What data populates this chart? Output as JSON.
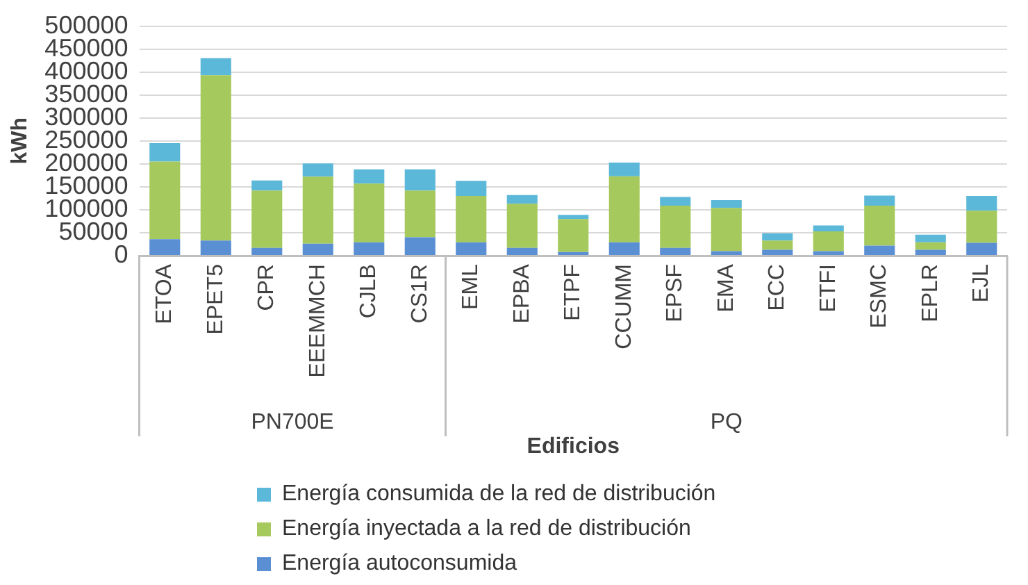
{
  "chart_data": {
    "type": "bar",
    "stacked": true,
    "xlabel": "Edificios",
    "ylabel": "kWh",
    "categories": [
      "ETOA",
      "EPET5",
      "CPR",
      "EEEMMCH",
      "CJLB",
      "CS1R",
      "EML",
      "EPBA",
      "ETPF",
      "CCUMM",
      "EPSF",
      "EMA",
      "ECC",
      "ETFI",
      "ESMC",
      "EPLR",
      "EJL"
    ],
    "series": [
      {
        "name": "Energía autoconsumida",
        "color": "#5b8fd4",
        "values": [
          36000,
          33000,
          17000,
          26000,
          29000,
          40000,
          29000,
          17000,
          8000,
          29000,
          17000,
          10000,
          13000,
          10000,
          22000,
          13000,
          28000
        ]
      },
      {
        "name": "Energía inyectada a la red de distribución",
        "color": "#a5c95c",
        "values": [
          169000,
          360000,
          125000,
          146000,
          128000,
          102000,
          101000,
          96000,
          72000,
          144000,
          92000,
          94000,
          20000,
          43000,
          87000,
          16000,
          70000
        ]
      },
      {
        "name": "Energía consumida de la red de distribución",
        "color": "#5cb8d9",
        "values": [
          40000,
          37000,
          22000,
          29000,
          31000,
          46000,
          33000,
          19000,
          9000,
          30000,
          19000,
          17000,
          16000,
          13000,
          22000,
          17000,
          32000
        ]
      }
    ],
    "ylim": [
      0,
      500000
    ],
    "yticks": [
      0,
      50000,
      100000,
      150000,
      200000,
      250000,
      300000,
      350000,
      400000,
      450000,
      500000
    ],
    "grid": "y",
    "legend": "bottom",
    "annotations": [
      "PN700E",
      "PQ"
    ]
  }
}
